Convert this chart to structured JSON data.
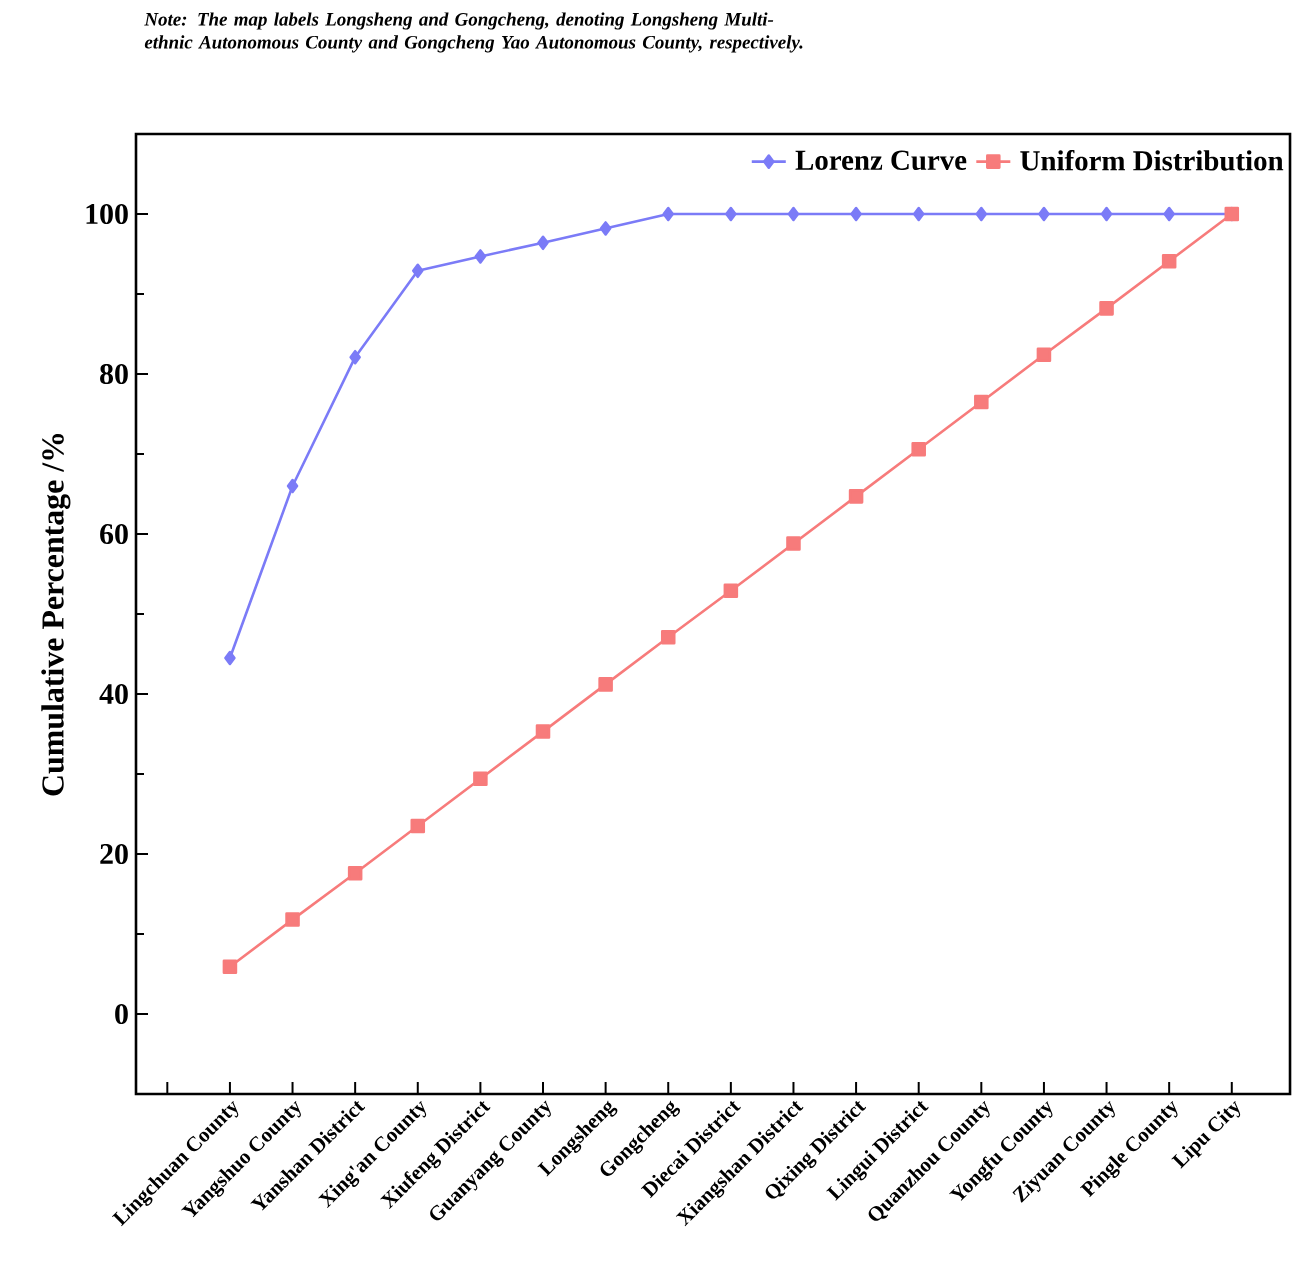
{
  "chart_data": {
    "type": "line",
    "annotations": [
      "Note: The map labels Longsheng and Gongcheng, denoting Longsheng Multi-ethnic Autonomous County and Gongcheng Yao Autonomous County, respectively."
    ],
    "ylabel": "Cumulative Percentage /%",
    "categories": [
      "Lingchuan County",
      "Yangshuo County",
      "Yanshan District",
      "Xing'an County",
      "Xiufeng District",
      "Guanyang County",
      "Longsheng",
      "Gongcheng",
      "Diecai District",
      "Xiangshan District",
      "Qixing District",
      "Lingui District",
      "Quanzhou County",
      "Yongfu County",
      "Ziyuan County",
      "Pingle County",
      "Lipu City"
    ],
    "series": [
      {
        "name": "Lorenz Curve",
        "color": "#7b7bf7",
        "marker": "diamond",
        "values": [
          44.5,
          66.0,
          82.1,
          92.9,
          94.7,
          96.4,
          98.2,
          100,
          100,
          100,
          100,
          100,
          100,
          100,
          100,
          100,
          100
        ]
      },
      {
        "name": "Uniform Distribution",
        "color": "#f77b7b",
        "marker": "square",
        "values": [
          5.9,
          11.8,
          17.6,
          23.5,
          29.4,
          35.3,
          41.2,
          47.1,
          52.9,
          58.8,
          64.7,
          70.6,
          76.5,
          82.4,
          88.2,
          94.1,
          100
        ]
      }
    ],
    "ylim": [
      -10,
      110
    ],
    "yticks": [
      0,
      20,
      40,
      60,
      80,
      100
    ],
    "legend": "top right",
    "line_style": "solid"
  }
}
